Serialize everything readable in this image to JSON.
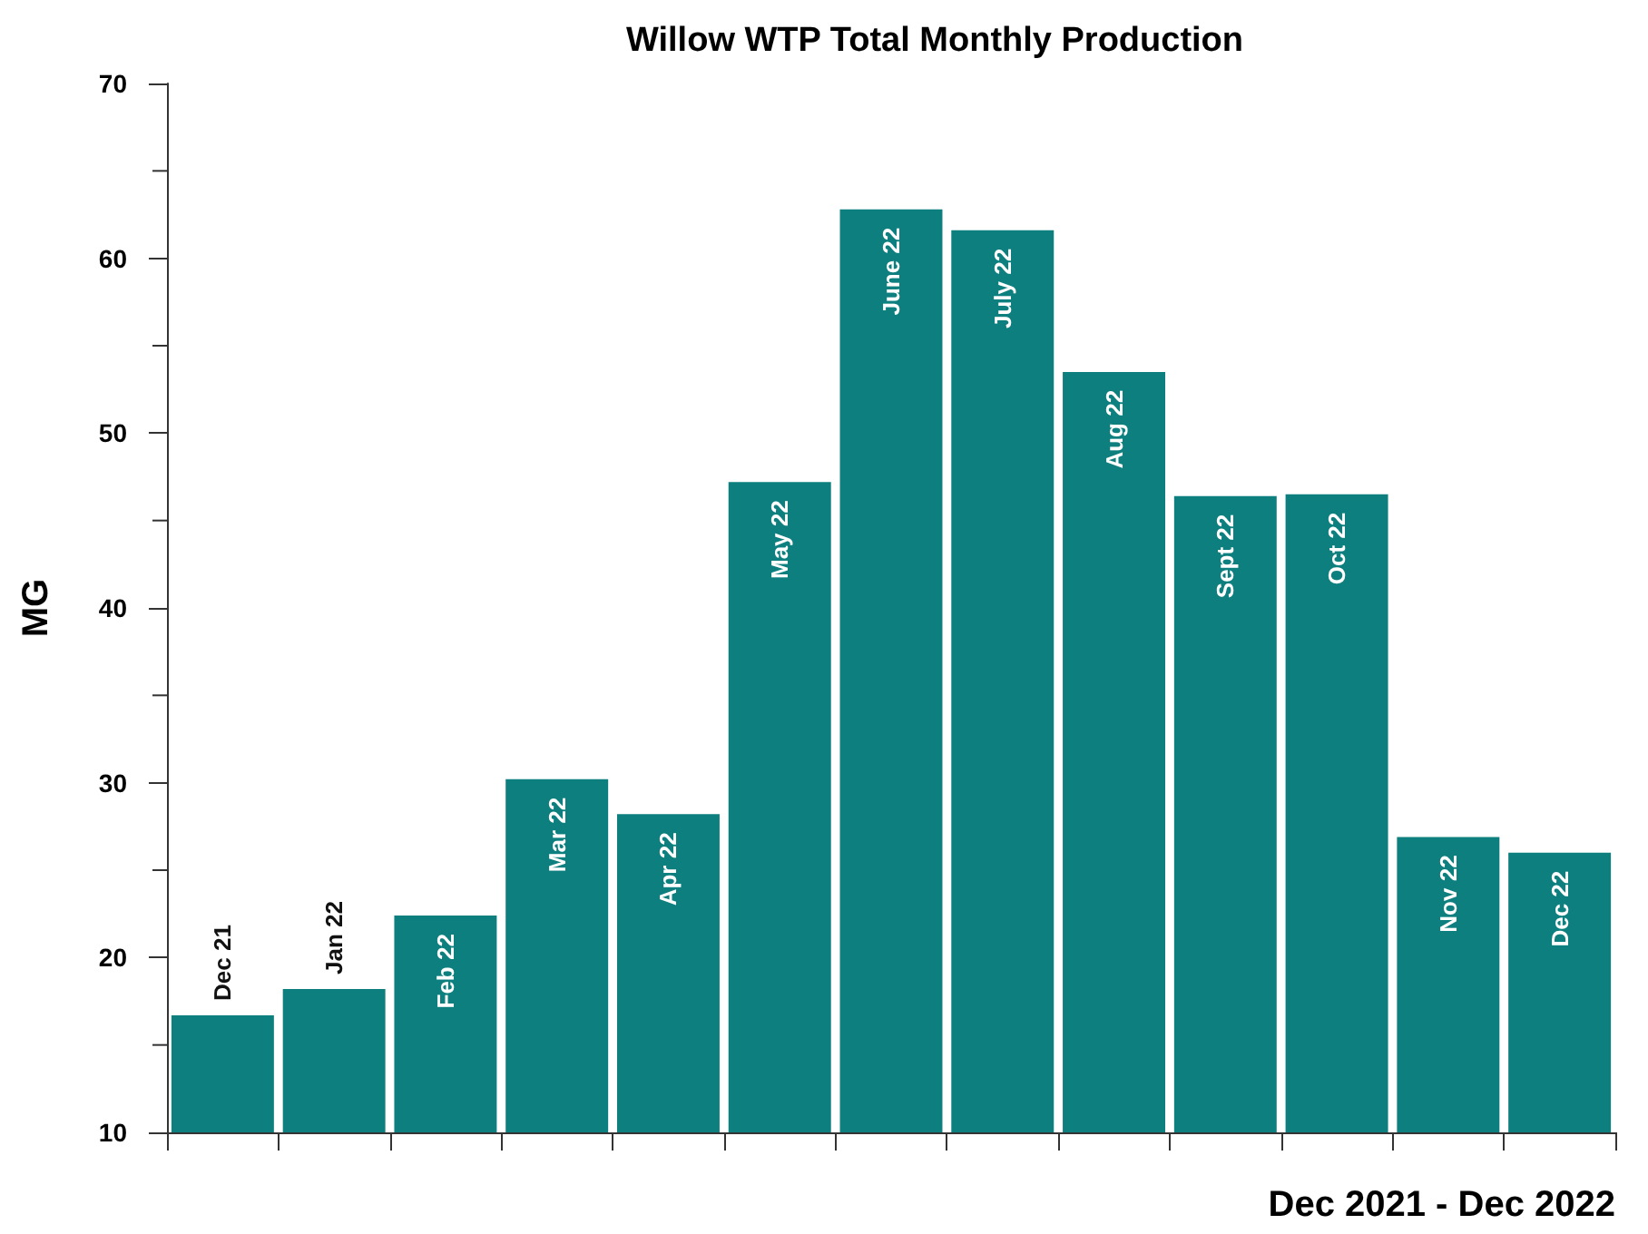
{
  "chart_data": {
    "type": "bar",
    "title": "Willow WTP Total Monthly Production",
    "xlabel": "Dec 2021 - Dec 2022",
    "ylabel": "MG",
    "categories": [
      "Dec 21",
      "Jan 22",
      "Feb 22",
      "Mar 22",
      "Apr 22",
      "May 22",
      "June 22",
      "July 22",
      "Aug 22",
      "Sept 22",
      "Oct 22",
      "Nov 22",
      "Dec 22"
    ],
    "values": [
      16.7,
      18.2,
      22.4,
      30.2,
      28.2,
      47.2,
      62.8,
      61.6,
      53.5,
      46.4,
      46.5,
      26.9,
      26.0
    ],
    "color": "#0e7f7f",
    "ylim": [
      10,
      70
    ],
    "yticks": [
      10,
      20,
      30,
      40,
      50,
      60,
      70
    ],
    "grid": false,
    "tick_labels": "y"
  }
}
